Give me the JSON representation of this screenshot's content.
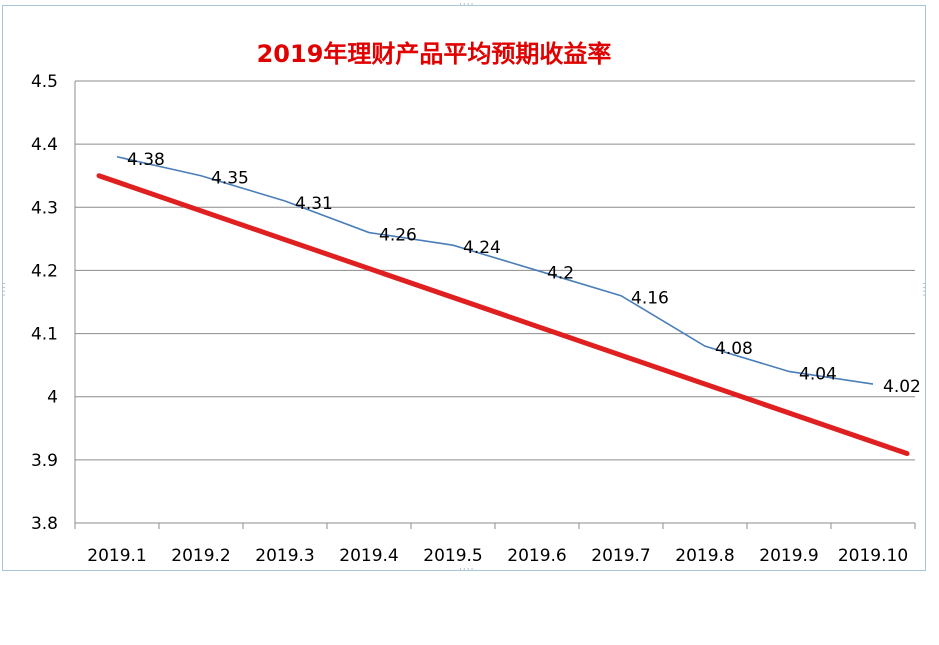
{
  "chart_data": {
    "type": "line",
    "title": "2019年理财产品平均预期收益率",
    "categories": [
      "2019.1",
      "2019.2",
      "2019.3",
      "2019.4",
      "2019.5",
      "2019.6",
      "2019.7",
      "2019.8",
      "2019.9",
      "2019.10"
    ],
    "series": [
      {
        "values": [
          4.38,
          4.35,
          4.31,
          4.26,
          4.24,
          4.2,
          4.16,
          4.08,
          4.04,
          4.02
        ],
        "color": "#4a7ebb",
        "data_labels": [
          "4.38",
          "4.35",
          "4.31",
          "4.26",
          "4.24",
          "4.2",
          "4.16",
          "4.08",
          "4.04",
          "4.02"
        ]
      }
    ],
    "trendline": {
      "type": "linear",
      "color": "#e02020",
      "start": 4.35,
      "end": 3.91
    },
    "y_ticks": [
      "3.8",
      "3.9",
      "4",
      "4.1",
      "4.2",
      "4.3",
      "4.4",
      "4.5"
    ],
    "ylim": [
      3.8,
      4.5
    ],
    "grid": true,
    "legend": "none",
    "colors": {
      "title": "#e00000",
      "grid": "#8c8c8c",
      "frame": "#a9c8d6"
    }
  }
}
